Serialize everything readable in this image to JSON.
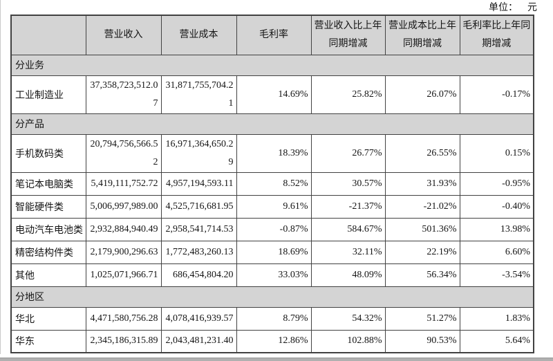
{
  "unit_note": {
    "label": "单位：",
    "value": "元"
  },
  "colors": {
    "header_fill": "#d4d4d4",
    "section_fill": "#d4d4d4",
    "border": "#414141",
    "bottom_strip": "#b0b0b0"
  },
  "table": {
    "columns": [
      "",
      "营业收入",
      "营业成本",
      "毛利率",
      "营业收入比上年同期增减",
      "营业成本比上年同期增减",
      "毛利率比上年同期增减"
    ],
    "rows": [
      {
        "type": "section",
        "label": "分业务"
      },
      {
        "type": "data",
        "label": "工业制造业",
        "values": [
          "37,358,723,512.07",
          "31,871,755,704.21",
          "14.69%",
          "25.82%",
          "26.07%",
          "-0.17%"
        ]
      },
      {
        "type": "section",
        "label": "分产品"
      },
      {
        "type": "data",
        "label": "手机数码类",
        "values": [
          "20,794,756,566.52",
          "16,971,364,650.29",
          "18.39%",
          "26.77%",
          "26.55%",
          "0.15%"
        ]
      },
      {
        "type": "data",
        "label": "笔记本电脑类",
        "values": [
          "5,419,111,752.72",
          "4,957,194,593.11",
          "8.52%",
          "30.57%",
          "31.93%",
          "-0.95%"
        ]
      },
      {
        "type": "data",
        "label": "智能硬件类",
        "values": [
          "5,006,997,989.00",
          "4,525,716,681.95",
          "9.61%",
          "-21.37%",
          "-21.02%",
          "-0.40%"
        ]
      },
      {
        "type": "data",
        "label": "电动汽车电池类",
        "values": [
          "2,932,884,940.49",
          "2,958,541,714.53",
          "-0.87%",
          "584.67%",
          "501.36%",
          "13.98%"
        ]
      },
      {
        "type": "data",
        "label": "精密结构件类",
        "values": [
          "2,179,900,296.63",
          "1,772,483,260.13",
          "18.69%",
          "32.11%",
          "22.19%",
          "6.60%"
        ]
      },
      {
        "type": "data",
        "label": "其他",
        "values": [
          "1,025,071,966.71",
          "686,454,804.20",
          "33.03%",
          "48.09%",
          "56.34%",
          "-3.54%"
        ]
      },
      {
        "type": "section",
        "label": "分地区"
      },
      {
        "type": "data",
        "label": "华北",
        "values": [
          "4,471,580,756.28",
          "4,078,416,939.57",
          "8.79%",
          "54.32%",
          "51.27%",
          "1.83%"
        ]
      },
      {
        "type": "data",
        "label": "华东",
        "values": [
          "2,345,186,315.89",
          "2,043,481,231.40",
          "12.86%",
          "102.88%",
          "90.53%",
          "5.64%"
        ]
      }
    ]
  }
}
